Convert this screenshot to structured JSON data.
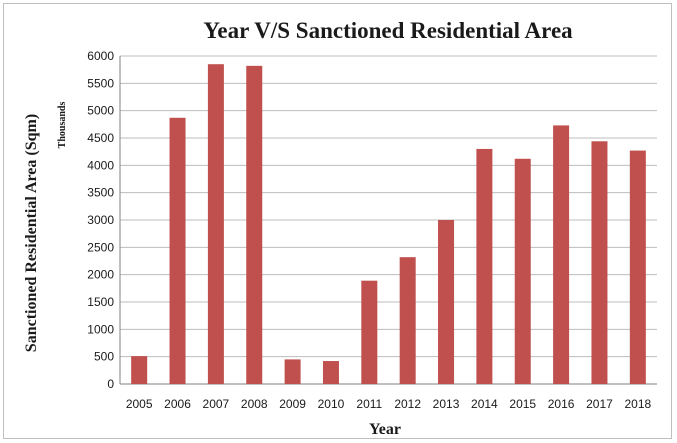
{
  "chart_data": {
    "type": "bar",
    "title": "Year V/S Sanctioned Residential Area",
    "xlabel": "Year",
    "ylabel": "Sanctioned Residential Area (Sqm)",
    "y_unit_label": "Thousands",
    "categories": [
      "2005",
      "2006",
      "2007",
      "2008",
      "2009",
      "2010",
      "2011",
      "2012",
      "2013",
      "2014",
      "2015",
      "2016",
      "2017",
      "2018"
    ],
    "values": [
      510,
      4870,
      5850,
      5820,
      450,
      420,
      1890,
      2320,
      3000,
      4300,
      4120,
      4730,
      4440,
      4270
    ],
    "ylim": [
      0,
      6000
    ],
    "yticks": [
      "0",
      "500",
      "1000",
      "1500",
      "2000",
      "2500",
      "3000",
      "3500",
      "4000",
      "4500",
      "5000",
      "5500",
      "6000"
    ],
    "grid": true,
    "legend": "none",
    "bar_color": "#c0504d"
  }
}
